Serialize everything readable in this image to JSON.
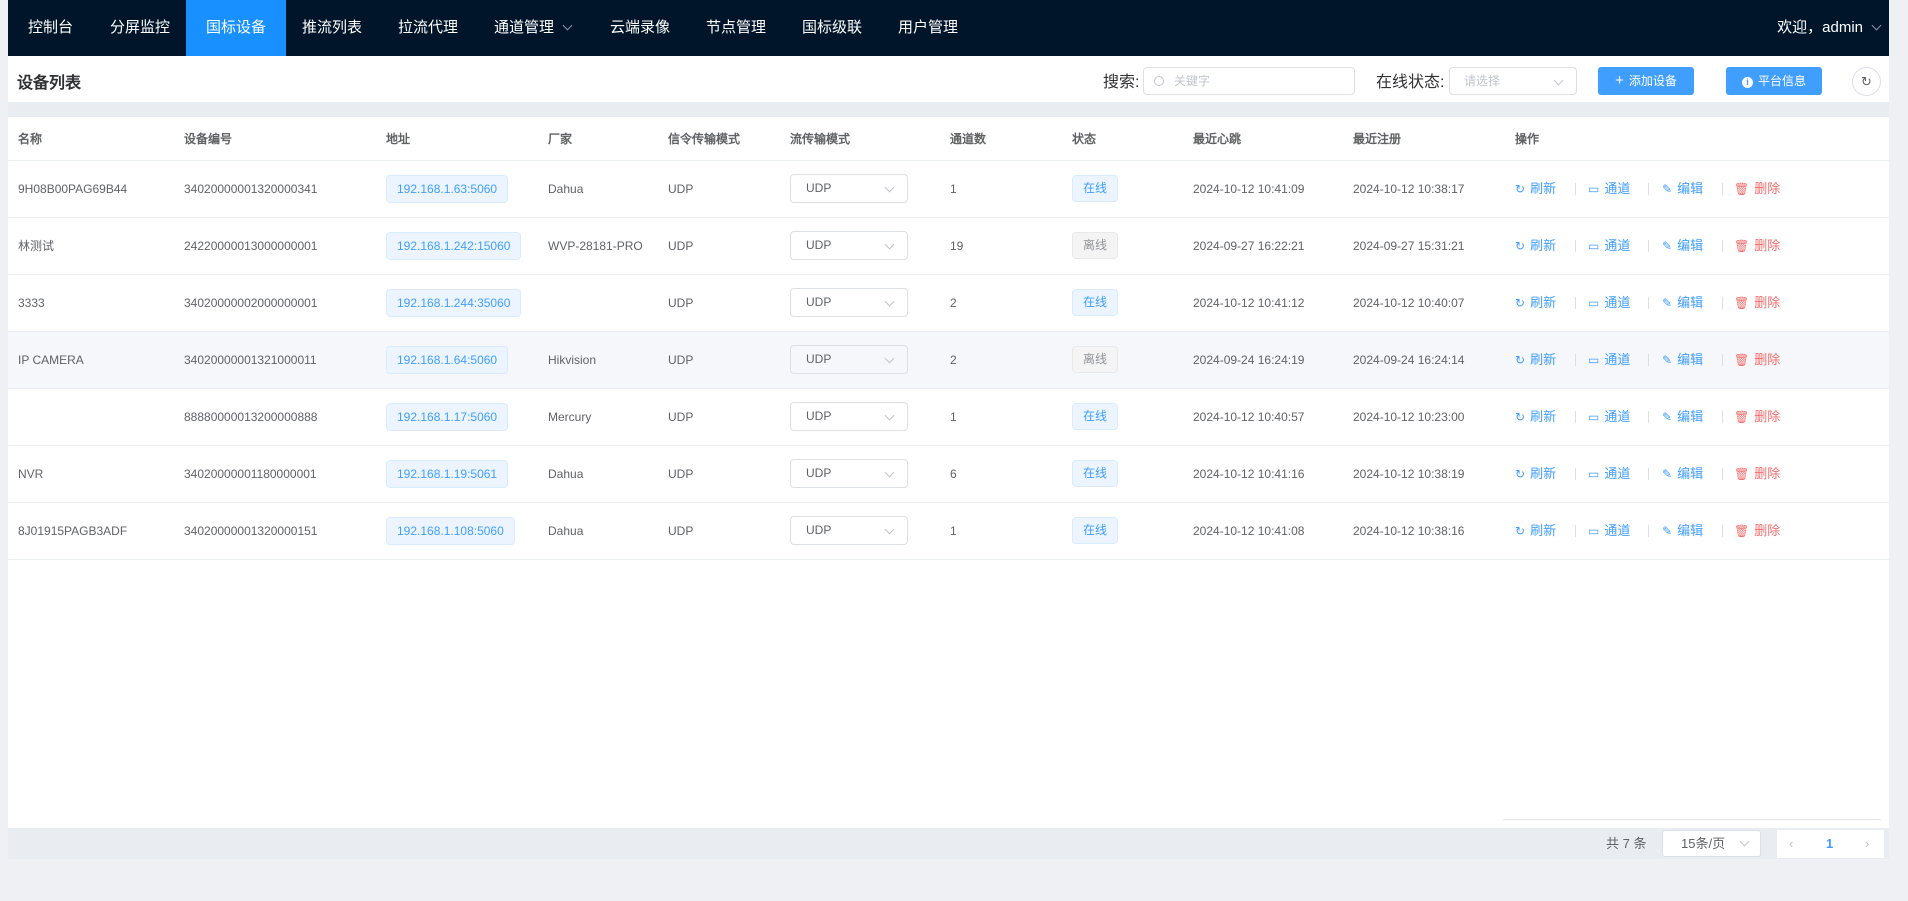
{
  "nav": {
    "items": [
      {
        "label": "控制台"
      },
      {
        "label": "分屏监控"
      },
      {
        "label": "国标设备",
        "active": true
      },
      {
        "label": "推流列表"
      },
      {
        "label": "拉流代理"
      },
      {
        "label": "通道管理",
        "dropdown": true
      },
      {
        "label": "云端录像"
      },
      {
        "label": "节点管理"
      },
      {
        "label": "国标级联"
      },
      {
        "label": "用户管理"
      }
    ],
    "user": "欢迎，admin"
  },
  "toolbar": {
    "title": "设备列表",
    "search_label": "搜索:",
    "search_placeholder": "关键字",
    "status_label": "在线状态:",
    "status_placeholder": "请选择",
    "add_button": "添加设备",
    "info_button": "平台信息",
    "refresh_icon": "refresh-icon"
  },
  "table": {
    "columns": [
      "名称",
      "设备编号",
      "地址",
      "厂家",
      "信令传输模式",
      "流传输模式",
      "通道数",
      "状态",
      "最近心跳",
      "最近注册",
      "操作"
    ],
    "actions": {
      "refresh": "刷新",
      "channel": "通道",
      "edit": "编辑",
      "delete": "删除"
    },
    "rows": [
      {
        "name": "9H08B00PAG69B44",
        "id": "34020000001320000341",
        "address": "192.168.1.63:5060",
        "vendor": "Dahua",
        "signal": "UDP",
        "stream": "UDP",
        "channels": "1",
        "status": "在线",
        "online": true,
        "heartbeat": "2024-10-12 10:41:09",
        "register": "2024-10-12 10:38:17"
      },
      {
        "name": "林测试",
        "id": "24220000013000000001",
        "address": "192.168.1.242:15060",
        "vendor": "WVP-28181-PRO",
        "signal": "UDP",
        "stream": "UDP",
        "channels": "19",
        "status": "离线",
        "online": false,
        "heartbeat": "2024-09-27 16:22:21",
        "register": "2024-09-27 15:31:21"
      },
      {
        "name": "3333",
        "id": "34020000002000000001",
        "address": "192.168.1.244:35060",
        "vendor": "",
        "signal": "UDP",
        "stream": "UDP",
        "channels": "2",
        "status": "在线",
        "online": true,
        "heartbeat": "2024-10-12 10:41:12",
        "register": "2024-10-12 10:40:07"
      },
      {
        "name": "IP CAMERA",
        "id": "34020000001321000011",
        "address": "192.168.1.64:5060",
        "vendor": "Hikvision",
        "signal": "UDP",
        "stream": "UDP",
        "channels": "2",
        "status": "离线",
        "online": false,
        "heartbeat": "2024-09-24 16:24:19",
        "register": "2024-09-24 16:24:14",
        "hover": true
      },
      {
        "name": "",
        "id": "88880000013200000888",
        "address": "192.168.1.17:5060",
        "vendor": "Mercury",
        "signal": "UDP",
        "stream": "UDP",
        "channels": "1",
        "status": "在线",
        "online": true,
        "heartbeat": "2024-10-12 10:40:57",
        "register": "2024-10-12 10:23:00"
      },
      {
        "name": "NVR",
        "id": "34020000001180000001",
        "address": "192.168.1.19:5061",
        "vendor": "Dahua",
        "signal": "UDP",
        "stream": "UDP",
        "channels": "6",
        "status": "在线",
        "online": true,
        "heartbeat": "2024-10-12 10:41:16",
        "register": "2024-10-12 10:38:19"
      },
      {
        "name": "8J01915PAGB3ADF",
        "id": "34020000001320000151",
        "address": "192.168.1.108:5060",
        "vendor": "Dahua",
        "signal": "UDP",
        "stream": "UDP",
        "channels": "1",
        "status": "在线",
        "online": true,
        "heartbeat": "2024-10-12 10:41:08",
        "register": "2024-10-12 10:38:16"
      }
    ]
  },
  "pagination": {
    "total": "共 7 条",
    "page_size": "15条/页",
    "current_page": "1"
  },
  "colors": {
    "nav_bg": "#001529",
    "nav_active": "#1890ff",
    "primary": "#409eff",
    "danger": "#f56c6c"
  }
}
